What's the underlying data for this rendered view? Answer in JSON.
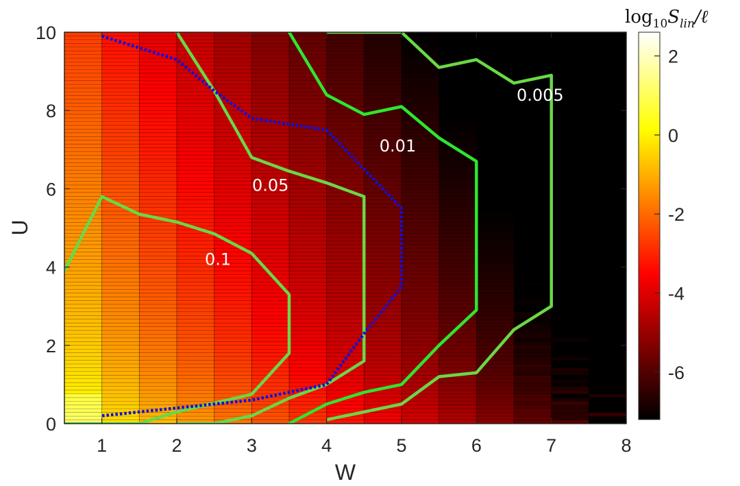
{
  "chart_data": {
    "type": "heatmap",
    "title": "",
    "xlabel": "W",
    "ylabel": "U",
    "xlim": [
      0.5,
      8
    ],
    "ylim": [
      0,
      10
    ],
    "xticks": [
      "1",
      "2",
      "3",
      "4",
      "5",
      "6",
      "7",
      "8"
    ],
    "yticks": [
      "0",
      "2",
      "4",
      "6",
      "8",
      "10"
    ],
    "colorbar": {
      "title_parts": [
        "log",
        "10",
        "S",
        "lin",
        "/ℓ"
      ],
      "range": [
        -7.2,
        2.6
      ],
      "ticks": [
        "2",
        "0",
        "-2",
        "-4",
        "-6"
      ],
      "tick_values": [
        2,
        0,
        -2,
        -4,
        -6
      ],
      "colormap": "hot"
    },
    "heatmap_columns": {
      "W": [
        0.75,
        1.5,
        2.5,
        3.5,
        4.5,
        5.5,
        6.5,
        7.5,
        8.0
      ],
      "w_centers": [
        0.75,
        1.25,
        1.75,
        2.25,
        2.75,
        3.25,
        3.75,
        4.25,
        4.75,
        5.25,
        5.75,
        6.25,
        6.75,
        7.25,
        7.75
      ],
      "rows": 105,
      "field": "log10 S_lin/ℓ ≈ f(W, U)"
    },
    "series": [
      {
        "name": "0.1",
        "style": "solid-green",
        "points": [
          [
            0.5,
            3.9
          ],
          [
            1.0,
            5.8
          ],
          [
            1.5,
            5.35
          ],
          [
            2.0,
            5.15
          ],
          [
            2.5,
            4.85
          ],
          [
            3.0,
            4.35
          ],
          [
            3.5,
            3.3
          ],
          [
            3.5,
            1.8
          ],
          [
            3.0,
            0.75
          ],
          [
            2.0,
            0.3
          ],
          [
            1.5,
            0.0
          ],
          [
            0.5,
            0.0
          ]
        ]
      },
      {
        "name": "0.05",
        "style": "solid-green",
        "points": [
          [
            2.0,
            10.0
          ],
          [
            2.5,
            8.5
          ],
          [
            3.0,
            6.8
          ],
          [
            3.5,
            6.45
          ],
          [
            4.0,
            6.15
          ],
          [
            4.5,
            5.8
          ],
          [
            4.5,
            1.6
          ],
          [
            4.0,
            1.0
          ],
          [
            3.5,
            0.65
          ],
          [
            3.0,
            0.2
          ],
          [
            2.5,
            0.0
          ],
          [
            2.0,
            0.0
          ]
        ]
      },
      {
        "name": "0.01",
        "style": "solid-green",
        "points": [
          [
            3.5,
            10.0
          ],
          [
            4.0,
            8.4
          ],
          [
            4.5,
            7.9
          ],
          [
            5.0,
            8.1
          ],
          [
            5.5,
            7.3
          ],
          [
            6.0,
            6.7
          ],
          [
            6.0,
            2.9
          ],
          [
            5.5,
            2.0
          ],
          [
            5.0,
            1.0
          ],
          [
            4.5,
            0.8
          ],
          [
            4.0,
            0.5
          ],
          [
            3.5,
            0.0
          ]
        ]
      },
      {
        "name": "0.005",
        "style": "solid-green",
        "points": [
          [
            4.0,
            10.0
          ],
          [
            5.0,
            10.0
          ],
          [
            5.5,
            9.1
          ],
          [
            6.0,
            9.3
          ],
          [
            6.5,
            8.7
          ],
          [
            7.0,
            8.9
          ],
          [
            7.0,
            3.0
          ],
          [
            6.5,
            2.4
          ],
          [
            6.0,
            1.3
          ],
          [
            5.5,
            1.2
          ],
          [
            5.0,
            0.5
          ],
          [
            4.0,
            0.1
          ]
        ]
      },
      {
        "name": "",
        "style": "dotted-blue",
        "points": [
          [
            1.0,
            9.9
          ],
          [
            2.0,
            9.3
          ],
          [
            2.5,
            8.5
          ],
          [
            3.0,
            7.8
          ],
          [
            4.0,
            7.5
          ],
          [
            4.5,
            6.5
          ],
          [
            5.0,
            5.5
          ],
          [
            5.0,
            3.5
          ],
          [
            4.5,
            2.3
          ],
          [
            4.0,
            1.0
          ],
          [
            3.0,
            0.6
          ],
          [
            2.0,
            0.4
          ],
          [
            1.0,
            0.2
          ]
        ]
      }
    ],
    "contour_labels": [
      {
        "text": "0.1",
        "w": 2.55,
        "u": 4.05
      },
      {
        "text": "0.05",
        "w": 3.25,
        "u": 5.95
      },
      {
        "text": "0.01",
        "w": 4.95,
        "u": 6.95
      },
      {
        "text": "0.005",
        "w": 6.85,
        "u": 8.25
      }
    ],
    "colors": {
      "contour_green": "#2ee62e",
      "contour_green_light": "#6ad846",
      "threshold_blue": "#1010e0"
    }
  }
}
